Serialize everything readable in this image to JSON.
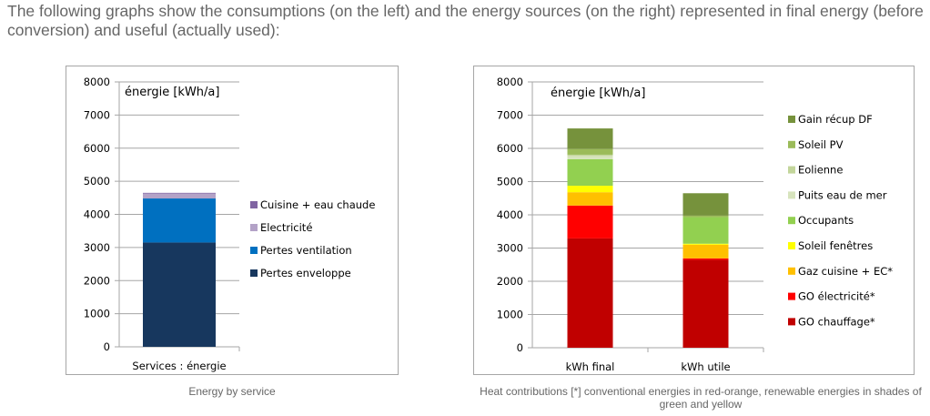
{
  "intro_text": "The following graphs show the consumptions (on the left) and the energy sources (on the right) represented in final energy (before conversion) and useful (actually used):",
  "chart_data": [
    {
      "type": "bar",
      "stacked": true,
      "title": "énergie [kWh/a]",
      "caption": "Energy by service",
      "xlabel": "",
      "ylabel": "",
      "ylim": [
        0,
        8000
      ],
      "yticks": [
        "0",
        "1000",
        "2000",
        "3000",
        "4000",
        "5000",
        "6000",
        "7000",
        "8000"
      ],
      "grid": true,
      "legend_position": "right",
      "categories": [
        "Services : énergie"
      ],
      "series": [
        {
          "name": "Pertes enveloppe",
          "color": "#17375e",
          "values": [
            3150
          ]
        },
        {
          "name": "Pertes ventilation",
          "color": "#0070c0",
          "values": [
            1330
          ]
        },
        {
          "name": "Electricité",
          "color": "#b3a2c7",
          "values": [
            150
          ]
        },
        {
          "name": "Cuisine + eau chaude",
          "color": "#8064a2",
          "values": [
            20
          ]
        }
      ],
      "legend": [
        "Cuisine + eau chaude",
        "Electricité",
        "Pertes ventilation",
        "Pertes enveloppe"
      ]
    },
    {
      "type": "bar",
      "stacked": true,
      "title": "énergie [kWh/a]",
      "caption": "Heat contributions [*] conventional energies in red-orange, renewable energies in shades of green and yellow",
      "xlabel": "",
      "ylabel": "",
      "ylim": [
        0,
        8000
      ],
      "yticks": [
        "0",
        "1000",
        "2000",
        "3000",
        "4000",
        "5000",
        "6000",
        "7000",
        "8000"
      ],
      "grid": true,
      "legend_position": "right",
      "categories": [
        "kWh final",
        "kWh utile"
      ],
      "series": [
        {
          "name": "GO chauffage*",
          "color": "#c00000",
          "values": [
            3290,
            2645
          ]
        },
        {
          "name": "GO électricité*",
          "color": "#ff0000",
          "values": [
            990,
            45
          ]
        },
        {
          "name": "Gaz cuisine + EC*",
          "color": "#ffc000",
          "values": [
            400,
            410
          ]
        },
        {
          "name": "Soleil fenêtres",
          "color": "#ffff00",
          "values": [
            195,
            30
          ]
        },
        {
          "name": "Occupants",
          "color": "#92d050",
          "values": [
            800,
            800
          ]
        },
        {
          "name": "Puits eau de mer",
          "color": "#d7e4bd",
          "values": [
            95,
            0
          ]
        },
        {
          "name": "Eolienne",
          "color": "#c3d69b",
          "values": [
            40,
            0
          ]
        },
        {
          "name": "Soleil PV",
          "color": "#9bbb59",
          "values": [
            170,
            45
          ]
        },
        {
          "name": "Gain récup DF",
          "color": "#76923c",
          "values": [
            620,
            675
          ]
        }
      ],
      "legend": [
        "Gain récup DF",
        "Soleil PV",
        "Eolienne",
        "Puits eau de mer",
        "Occupants",
        "Soleil fenêtres",
        "Gaz cuisine + EC*",
        "GO électricité*",
        "GO chauffage*"
      ]
    }
  ]
}
